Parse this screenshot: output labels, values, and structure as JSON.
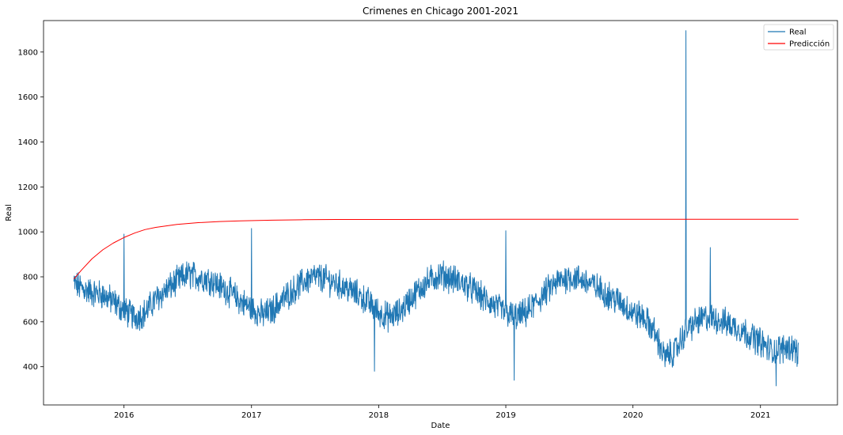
{
  "chart_data": {
    "type": "line",
    "title": "Crimenes en Chicago 2001-2021",
    "xlabel": "Date",
    "ylabel": "Real",
    "x_axis_type": "date",
    "xlim": [
      "2015-05-15",
      "2021-08-10"
    ],
    "ylim": [
      230,
      1940
    ],
    "x_ticks": [
      {
        "date": "2016-01-01",
        "label": "2016"
      },
      {
        "date": "2017-01-01",
        "label": "2017"
      },
      {
        "date": "2018-01-01",
        "label": "2018"
      },
      {
        "date": "2019-01-01",
        "label": "2019"
      },
      {
        "date": "2020-01-01",
        "label": "2020"
      },
      {
        "date": "2021-01-01",
        "label": "2021"
      }
    ],
    "y_ticks": [
      400,
      600,
      800,
      1000,
      1200,
      1400,
      1600,
      1800
    ],
    "grid": false,
    "legend_position": "top-right",
    "series": [
      {
        "name": "Real",
        "color": "#1f77b4",
        "x": [
          "2015-08-10",
          "2015-09-01",
          "2015-10-01",
          "2015-11-01",
          "2015-12-01",
          "2016-01-01",
          "2016-02-01",
          "2016-03-01",
          "2016-04-01",
          "2016-05-01",
          "2016-06-01",
          "2016-07-01",
          "2016-08-01",
          "2016-09-01",
          "2016-10-01",
          "2016-11-01",
          "2016-12-01",
          "2017-01-01",
          "2017-02-01",
          "2017-03-01",
          "2017-04-01",
          "2017-05-01",
          "2017-06-01",
          "2017-07-01",
          "2017-08-01",
          "2017-09-01",
          "2017-10-01",
          "2017-11-01",
          "2017-12-01",
          "2018-01-01",
          "2018-02-01",
          "2018-03-01",
          "2018-04-01",
          "2018-05-01",
          "2018-06-01",
          "2018-07-01",
          "2018-08-01",
          "2018-09-01",
          "2018-10-01",
          "2018-11-01",
          "2018-12-01",
          "2019-01-01",
          "2019-02-01",
          "2019-03-01",
          "2019-04-01",
          "2019-05-01",
          "2019-06-01",
          "2019-07-01",
          "2019-08-01",
          "2019-09-01",
          "2019-10-01",
          "2019-11-01",
          "2019-12-01",
          "2020-01-01",
          "2020-02-01",
          "2020-03-01",
          "2020-04-01",
          "2020-05-01",
          "2020-06-01",
          "2020-07-01",
          "2020-08-01",
          "2020-09-01",
          "2020-10-01",
          "2020-11-01",
          "2020-12-01",
          "2021-01-01",
          "2021-02-01",
          "2021-03-01",
          "2021-04-01",
          "2021-04-20"
        ],
        "values": [
          770,
          750,
          730,
          720,
          690,
          650,
          620,
          640,
          700,
          740,
          780,
          810,
          800,
          790,
          760,
          730,
          690,
          660,
          630,
          650,
          700,
          740,
          780,
          800,
          790,
          770,
          750,
          720,
          690,
          640,
          620,
          640,
          700,
          750,
          790,
          810,
          790,
          770,
          740,
          700,
          670,
          640,
          620,
          640,
          690,
          740,
          780,
          800,
          790,
          770,
          740,
          710,
          680,
          640,
          620,
          560,
          440,
          470,
          560,
          600,
          620,
          610,
          590,
          570,
          540,
          510,
          470,
          480,
          490,
          460
        ]
      },
      {
        "name": "Predicción",
        "color": "#ff0000",
        "x": [
          "2015-08-10",
          "2015-09-01",
          "2015-10-01",
          "2015-11-01",
          "2015-12-01",
          "2016-01-01",
          "2016-02-01",
          "2016-03-01",
          "2016-04-01",
          "2016-06-01",
          "2016-08-01",
          "2016-10-01",
          "2016-12-01",
          "2017-03-01",
          "2017-06-01",
          "2017-09-01",
          "2018-01-01",
          "2019-01-01",
          "2020-01-01",
          "2021-01-01",
          "2021-04-20"
        ],
        "values": [
          790,
          830,
          880,
          920,
          950,
          975,
          995,
          1010,
          1020,
          1033,
          1041,
          1046,
          1049,
          1052,
          1054,
          1055,
          1055,
          1056,
          1056,
          1056,
          1056
        ]
      }
    ],
    "annotations": [
      {
        "date": "2016-01-01",
        "value": 990
      },
      {
        "date": "2017-01-01",
        "value": 1015
      },
      {
        "date": "2019-01-01",
        "value": 1005
      },
      {
        "date": "2020-06-01",
        "value": 1895
      },
      {
        "date": "2020-08-10",
        "value": 930
      },
      {
        "date": "2019-01-25",
        "value": 340
      },
      {
        "date": "2017-12-20",
        "value": 380
      },
      {
        "date": "2021-02-15",
        "value": 315
      }
    ]
  }
}
